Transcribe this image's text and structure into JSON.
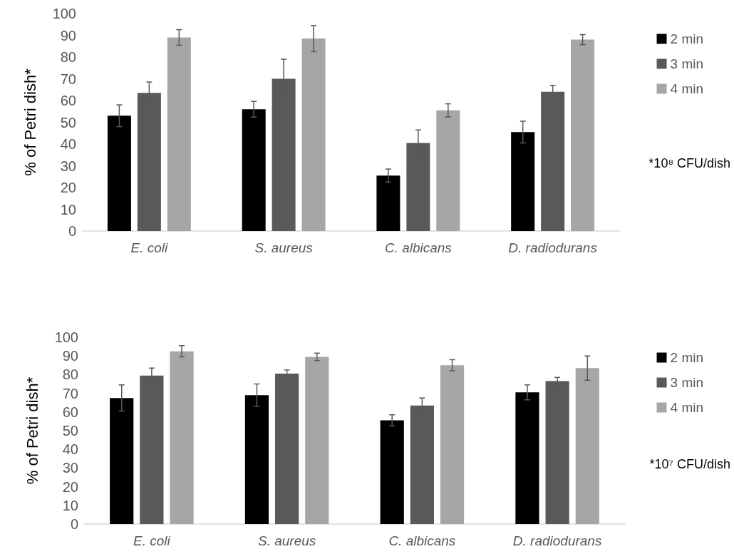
{
  "chart_data": [
    {
      "type": "bar",
      "ylabel": "% of Petri dish*",
      "categories": [
        "E. coli",
        "S. aureus",
        "C. albicans",
        "D. radiodurans"
      ],
      "ylim": [
        0,
        100
      ],
      "yticks": [
        0,
        10,
        20,
        30,
        40,
        50,
        60,
        70,
        80,
        90,
        100
      ],
      "grid": false,
      "legend": "right",
      "annotations": [
        "*10⁸ CFU/dish"
      ],
      "series": [
        {
          "name": "2 min",
          "color": "#000000",
          "values": [
            53,
            56,
            25.5,
            45.5
          ],
          "errors": [
            5,
            3.6,
            3,
            5
          ]
        },
        {
          "name": "3 min",
          "color": "#595959",
          "values": [
            63.5,
            70,
            40.5,
            64
          ],
          "errors": [
            5,
            9,
            6,
            3
          ]
        },
        {
          "name": "4 min",
          "color": "#a6a6a6",
          "values": [
            89,
            88.5,
            55.5,
            88
          ],
          "errors": [
            3.6,
            6,
            3,
            2.3
          ]
        }
      ]
    },
    {
      "type": "bar",
      "ylabel": "% of Petri dish*",
      "categories": [
        "E. coli",
        "S. aureus",
        "C. albicans",
        "D. radiodurans"
      ],
      "ylim": [
        0,
        100
      ],
      "yticks": [
        0,
        10,
        20,
        30,
        40,
        50,
        60,
        70,
        80,
        90,
        100
      ],
      "grid": false,
      "legend": "right",
      "annotations": [
        "*10⁷ CFU/dish"
      ],
      "series": [
        {
          "name": "2 min",
          "color": "#000000",
          "values": [
            67.5,
            69,
            55.5,
            70.5
          ],
          "errors": [
            7,
            6,
            3,
            4
          ]
        },
        {
          "name": "3 min",
          "color": "#595959",
          "values": [
            79.5,
            80.5,
            63.5,
            76.5
          ],
          "errors": [
            4,
            2,
            4,
            2
          ]
        },
        {
          "name": "4 min",
          "color": "#a6a6a6",
          "values": [
            92.5,
            89.5,
            85,
            83.5
          ],
          "errors": [
            3,
            2,
            3,
            6.5
          ]
        }
      ]
    }
  ]
}
